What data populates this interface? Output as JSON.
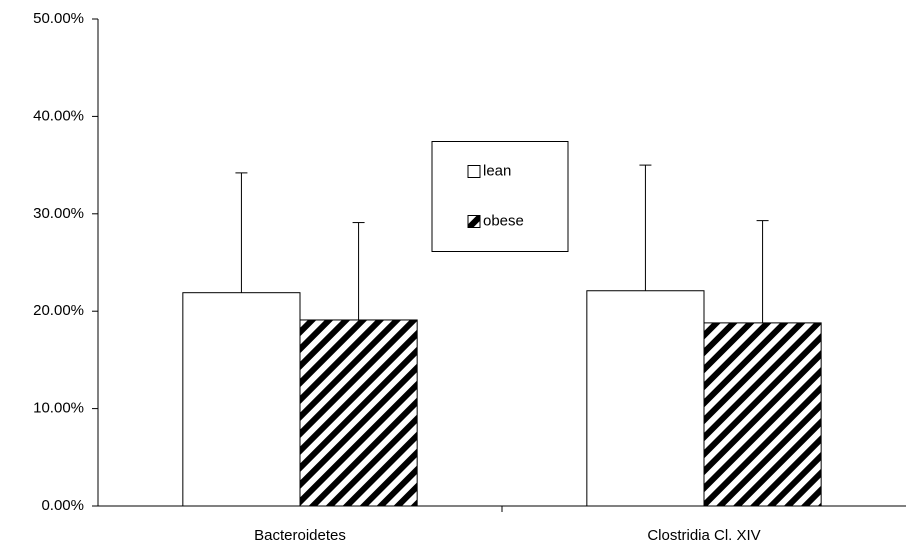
{
  "chart_data": {
    "type": "bar",
    "categories": [
      "Bacteroidetes",
      "Clostridia Cl. XIV"
    ],
    "series": [
      {
        "name": "lean",
        "color": "#ffffff",
        "pattern": "solid",
        "values": [
          21.9,
          22.1
        ],
        "errors": [
          12.3,
          12.9
        ]
      },
      {
        "name": "obese",
        "color": "#000000",
        "pattern": "hatch",
        "values": [
          19.1,
          18.8
        ],
        "errors": [
          10.0,
          10.5
        ]
      }
    ],
    "ylim": [
      0,
      50
    ],
    "yticks": [
      {
        "value": 0,
        "label": "0.00%"
      },
      {
        "value": 10,
        "label": "10.00%"
      },
      {
        "value": 20,
        "label": "20.00%"
      },
      {
        "value": 30,
        "label": "30.00%"
      },
      {
        "value": 40,
        "label": "40.00%"
      },
      {
        "value": 50,
        "label": "50.00%"
      }
    ],
    "grid": false,
    "legend": "center"
  }
}
